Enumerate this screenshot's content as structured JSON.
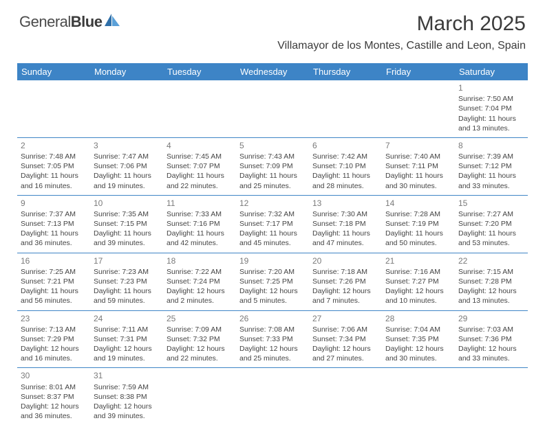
{
  "brand": {
    "part1": "General",
    "part2": "Blue"
  },
  "title": "March 2025",
  "location": "Villamayor de los Montes, Castille and Leon, Spain",
  "colors": {
    "header_bg": "#3d84c6",
    "header_text": "#ffffff",
    "border": "#3d84c6",
    "daynum": "#7a7a7a",
    "body_text": "#444444",
    "title_text": "#3b3b3b"
  },
  "day_headers": [
    "Sunday",
    "Monday",
    "Tuesday",
    "Wednesday",
    "Thursday",
    "Friday",
    "Saturday"
  ],
  "weeks": [
    [
      null,
      null,
      null,
      null,
      null,
      null,
      {
        "n": "1",
        "sr": "Sunrise: 7:50 AM",
        "ss": "Sunset: 7:04 PM",
        "dl1": "Daylight: 11 hours",
        "dl2": "and 13 minutes."
      }
    ],
    [
      {
        "n": "2",
        "sr": "Sunrise: 7:48 AM",
        "ss": "Sunset: 7:05 PM",
        "dl1": "Daylight: 11 hours",
        "dl2": "and 16 minutes."
      },
      {
        "n": "3",
        "sr": "Sunrise: 7:47 AM",
        "ss": "Sunset: 7:06 PM",
        "dl1": "Daylight: 11 hours",
        "dl2": "and 19 minutes."
      },
      {
        "n": "4",
        "sr": "Sunrise: 7:45 AM",
        "ss": "Sunset: 7:07 PM",
        "dl1": "Daylight: 11 hours",
        "dl2": "and 22 minutes."
      },
      {
        "n": "5",
        "sr": "Sunrise: 7:43 AM",
        "ss": "Sunset: 7:09 PM",
        "dl1": "Daylight: 11 hours",
        "dl2": "and 25 minutes."
      },
      {
        "n": "6",
        "sr": "Sunrise: 7:42 AM",
        "ss": "Sunset: 7:10 PM",
        "dl1": "Daylight: 11 hours",
        "dl2": "and 28 minutes."
      },
      {
        "n": "7",
        "sr": "Sunrise: 7:40 AM",
        "ss": "Sunset: 7:11 PM",
        "dl1": "Daylight: 11 hours",
        "dl2": "and 30 minutes."
      },
      {
        "n": "8",
        "sr": "Sunrise: 7:39 AM",
        "ss": "Sunset: 7:12 PM",
        "dl1": "Daylight: 11 hours",
        "dl2": "and 33 minutes."
      }
    ],
    [
      {
        "n": "9",
        "sr": "Sunrise: 7:37 AM",
        "ss": "Sunset: 7:13 PM",
        "dl1": "Daylight: 11 hours",
        "dl2": "and 36 minutes."
      },
      {
        "n": "10",
        "sr": "Sunrise: 7:35 AM",
        "ss": "Sunset: 7:15 PM",
        "dl1": "Daylight: 11 hours",
        "dl2": "and 39 minutes."
      },
      {
        "n": "11",
        "sr": "Sunrise: 7:33 AM",
        "ss": "Sunset: 7:16 PM",
        "dl1": "Daylight: 11 hours",
        "dl2": "and 42 minutes."
      },
      {
        "n": "12",
        "sr": "Sunrise: 7:32 AM",
        "ss": "Sunset: 7:17 PM",
        "dl1": "Daylight: 11 hours",
        "dl2": "and 45 minutes."
      },
      {
        "n": "13",
        "sr": "Sunrise: 7:30 AM",
        "ss": "Sunset: 7:18 PM",
        "dl1": "Daylight: 11 hours",
        "dl2": "and 47 minutes."
      },
      {
        "n": "14",
        "sr": "Sunrise: 7:28 AM",
        "ss": "Sunset: 7:19 PM",
        "dl1": "Daylight: 11 hours",
        "dl2": "and 50 minutes."
      },
      {
        "n": "15",
        "sr": "Sunrise: 7:27 AM",
        "ss": "Sunset: 7:20 PM",
        "dl1": "Daylight: 11 hours",
        "dl2": "and 53 minutes."
      }
    ],
    [
      {
        "n": "16",
        "sr": "Sunrise: 7:25 AM",
        "ss": "Sunset: 7:21 PM",
        "dl1": "Daylight: 11 hours",
        "dl2": "and 56 minutes."
      },
      {
        "n": "17",
        "sr": "Sunrise: 7:23 AM",
        "ss": "Sunset: 7:23 PM",
        "dl1": "Daylight: 11 hours",
        "dl2": "and 59 minutes."
      },
      {
        "n": "18",
        "sr": "Sunrise: 7:22 AM",
        "ss": "Sunset: 7:24 PM",
        "dl1": "Daylight: 12 hours",
        "dl2": "and 2 minutes."
      },
      {
        "n": "19",
        "sr": "Sunrise: 7:20 AM",
        "ss": "Sunset: 7:25 PM",
        "dl1": "Daylight: 12 hours",
        "dl2": "and 5 minutes."
      },
      {
        "n": "20",
        "sr": "Sunrise: 7:18 AM",
        "ss": "Sunset: 7:26 PM",
        "dl1": "Daylight: 12 hours",
        "dl2": "and 7 minutes."
      },
      {
        "n": "21",
        "sr": "Sunrise: 7:16 AM",
        "ss": "Sunset: 7:27 PM",
        "dl1": "Daylight: 12 hours",
        "dl2": "and 10 minutes."
      },
      {
        "n": "22",
        "sr": "Sunrise: 7:15 AM",
        "ss": "Sunset: 7:28 PM",
        "dl1": "Daylight: 12 hours",
        "dl2": "and 13 minutes."
      }
    ],
    [
      {
        "n": "23",
        "sr": "Sunrise: 7:13 AM",
        "ss": "Sunset: 7:29 PM",
        "dl1": "Daylight: 12 hours",
        "dl2": "and 16 minutes."
      },
      {
        "n": "24",
        "sr": "Sunrise: 7:11 AM",
        "ss": "Sunset: 7:31 PM",
        "dl1": "Daylight: 12 hours",
        "dl2": "and 19 minutes."
      },
      {
        "n": "25",
        "sr": "Sunrise: 7:09 AM",
        "ss": "Sunset: 7:32 PM",
        "dl1": "Daylight: 12 hours",
        "dl2": "and 22 minutes."
      },
      {
        "n": "26",
        "sr": "Sunrise: 7:08 AM",
        "ss": "Sunset: 7:33 PM",
        "dl1": "Daylight: 12 hours",
        "dl2": "and 25 minutes."
      },
      {
        "n": "27",
        "sr": "Sunrise: 7:06 AM",
        "ss": "Sunset: 7:34 PM",
        "dl1": "Daylight: 12 hours",
        "dl2": "and 27 minutes."
      },
      {
        "n": "28",
        "sr": "Sunrise: 7:04 AM",
        "ss": "Sunset: 7:35 PM",
        "dl1": "Daylight: 12 hours",
        "dl2": "and 30 minutes."
      },
      {
        "n": "29",
        "sr": "Sunrise: 7:03 AM",
        "ss": "Sunset: 7:36 PM",
        "dl1": "Daylight: 12 hours",
        "dl2": "and 33 minutes."
      }
    ],
    [
      {
        "n": "30",
        "sr": "Sunrise: 8:01 AM",
        "ss": "Sunset: 8:37 PM",
        "dl1": "Daylight: 12 hours",
        "dl2": "and 36 minutes."
      },
      {
        "n": "31",
        "sr": "Sunrise: 7:59 AM",
        "ss": "Sunset: 8:38 PM",
        "dl1": "Daylight: 12 hours",
        "dl2": "and 39 minutes."
      },
      null,
      null,
      null,
      null,
      null
    ]
  ]
}
